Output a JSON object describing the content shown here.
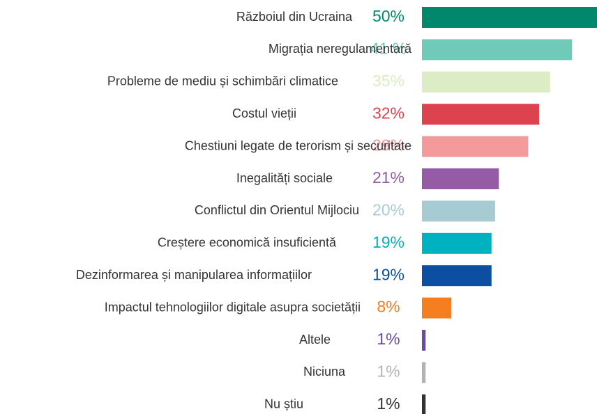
{
  "chart_data": {
    "type": "barh",
    "categories": [
      "Războiul din Ucraina",
      "Migrația neregulamentară",
      "Probleme de mediu și schimbări climatice",
      "Costul vieții",
      "Chestiuni legate de terorism și securitate",
      "Inegalități sociale",
      "Conflictul din Orientul Mijlociu",
      "Creștere economică insuficientă",
      "Dezinformarea și manipularea informațiilor",
      "Impactul tehnologiilor digitale asupra societății",
      "Altele",
      "Niciuna",
      "Nu știu"
    ],
    "values": [
      50,
      41,
      35,
      32,
      29,
      21,
      20,
      19,
      19,
      8,
      1,
      1,
      1
    ],
    "value_labels": [
      "50%",
      "41 %",
      "35%",
      "32%",
      "29%",
      "21%",
      "20%",
      "19%",
      "19%",
      "8%",
      "1%",
      "1%",
      "1%"
    ],
    "colors": [
      "#00876c",
      "#6fcab7",
      "#dcecc4",
      "#dc434e",
      "#f49a9a",
      "#955ba5",
      "#a6cbd3",
      "#00b2bf",
      "#0c4ea2",
      "#f57e20",
      "#6a4c9c",
      "#b3b3b3",
      "#333333"
    ]
  }
}
